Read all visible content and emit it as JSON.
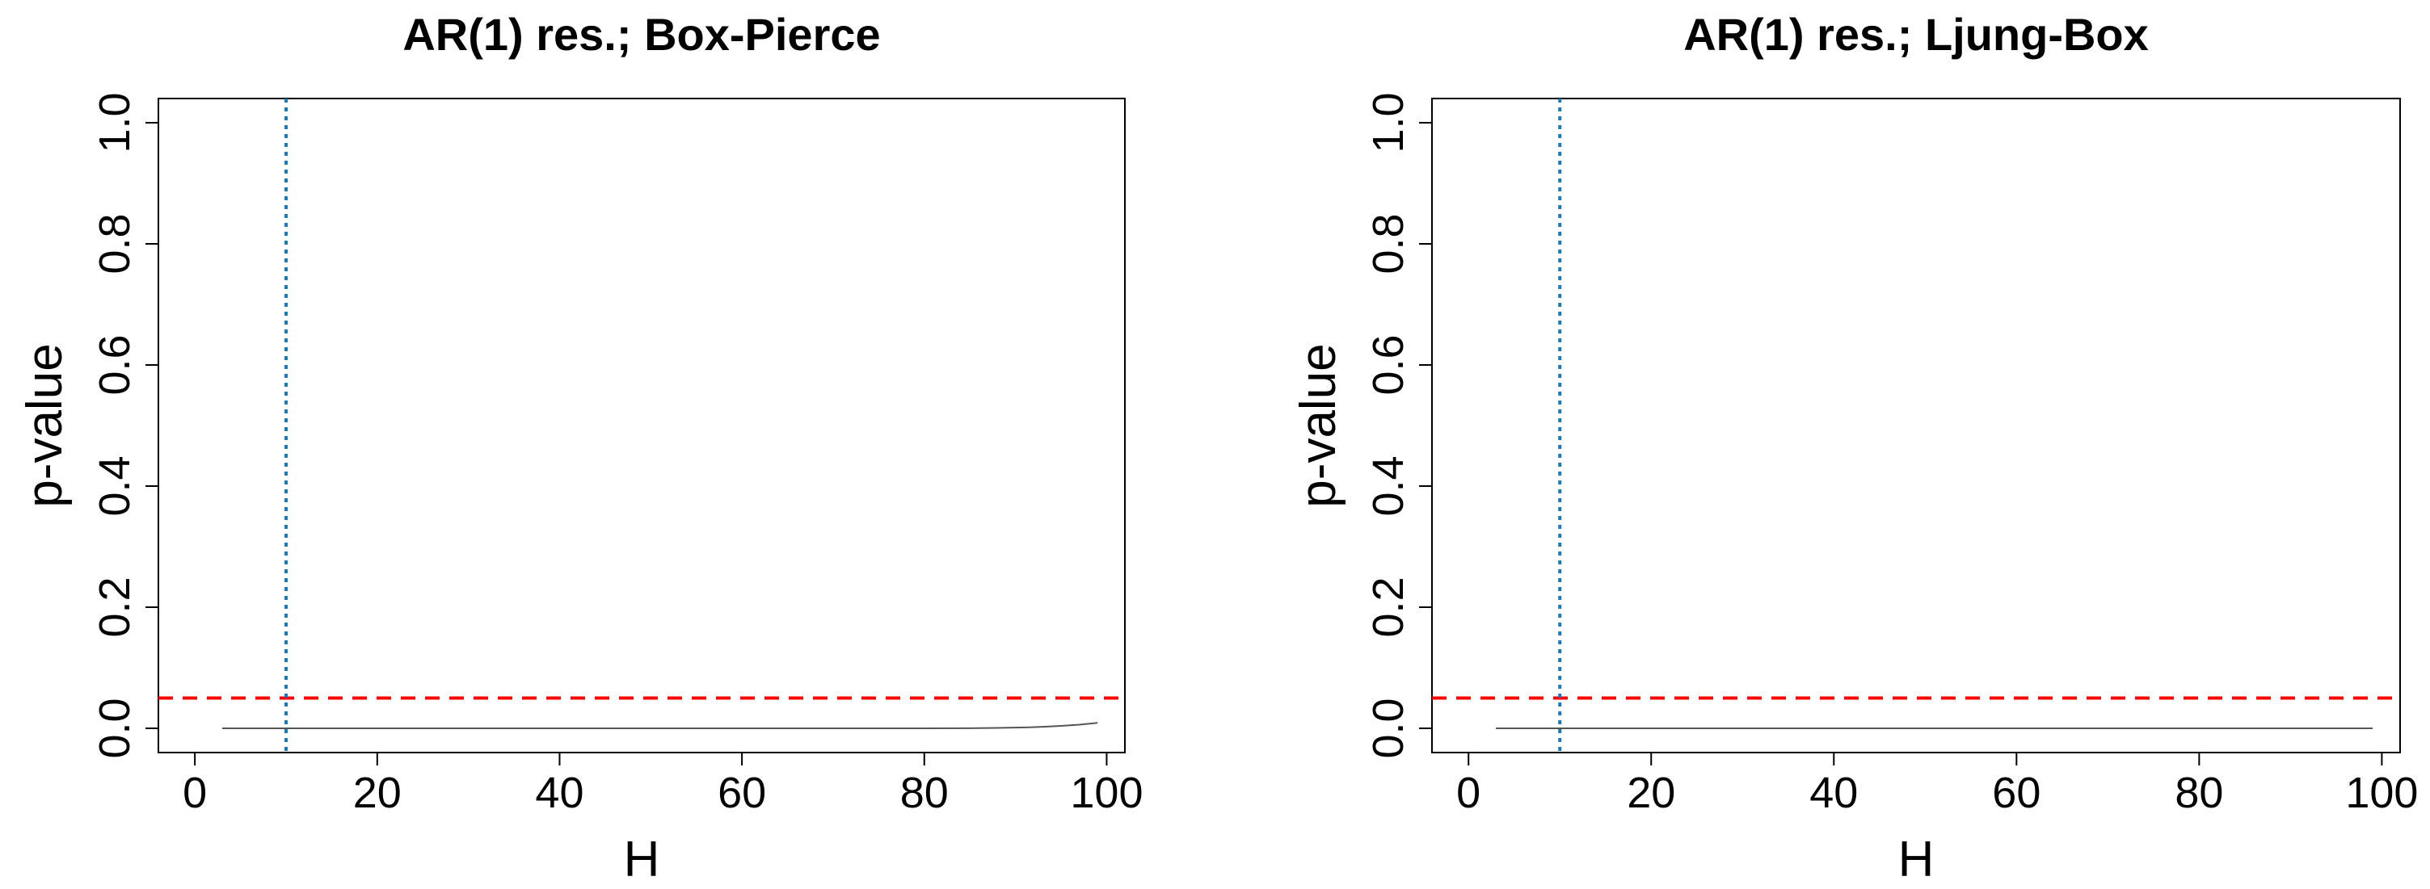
{
  "chart_data": [
    {
      "type": "line",
      "title": "AR(1) res.;  Box-Pierce",
      "xlabel": "H",
      "ylabel": "p-value",
      "xlim": [
        -4,
        102
      ],
      "ylim": [
        -0.04,
        1.04
      ],
      "xticks": [
        "0",
        "20",
        "40",
        "60",
        "80",
        "100"
      ],
      "yticks": [
        "0.0",
        "0.2",
        "0.4",
        "0.6",
        "0.8",
        "1.0"
      ],
      "grid": false,
      "series": [
        {
          "color": "#555555",
          "x": [
            3,
            20,
            40,
            60,
            80,
            85,
            88,
            91,
            93,
            95,
            97,
            99
          ],
          "y": [
            0,
            0,
            0,
            0,
            0,
            0.0002,
            0.0006,
            0.0015,
            0.0025,
            0.004,
            0.006,
            0.009
          ]
        }
      ],
      "reference_lines": [
        {
          "orientation": "horizontal",
          "value": 0.05,
          "color": "#ff0000",
          "style": "dashed"
        },
        {
          "orientation": "vertical",
          "value": 10,
          "color": "#1f77b4",
          "style": "dotted"
        }
      ]
    },
    {
      "type": "line",
      "title": "AR(1) res.;  Ljung-Box",
      "xlabel": "H",
      "ylabel": "p-value",
      "xlim": [
        -4,
        102
      ],
      "ylim": [
        -0.04,
        1.04
      ],
      "xticks": [
        "0",
        "20",
        "40",
        "60",
        "80",
        "100"
      ],
      "yticks": [
        "0.0",
        "0.2",
        "0.4",
        "0.6",
        "0.8",
        "1.0"
      ],
      "grid": false,
      "series": [
        {
          "color": "#555555",
          "x": [
            3,
            20,
            40,
            60,
            80,
            99
          ],
          "y": [
            0,
            0,
            0,
            0,
            0,
            0
          ]
        }
      ],
      "reference_lines": [
        {
          "orientation": "horizontal",
          "value": 0.05,
          "color": "#ff0000",
          "style": "dashed"
        },
        {
          "orientation": "vertical",
          "value": 10,
          "color": "#1f77b4",
          "style": "dotted"
        }
      ]
    }
  ]
}
